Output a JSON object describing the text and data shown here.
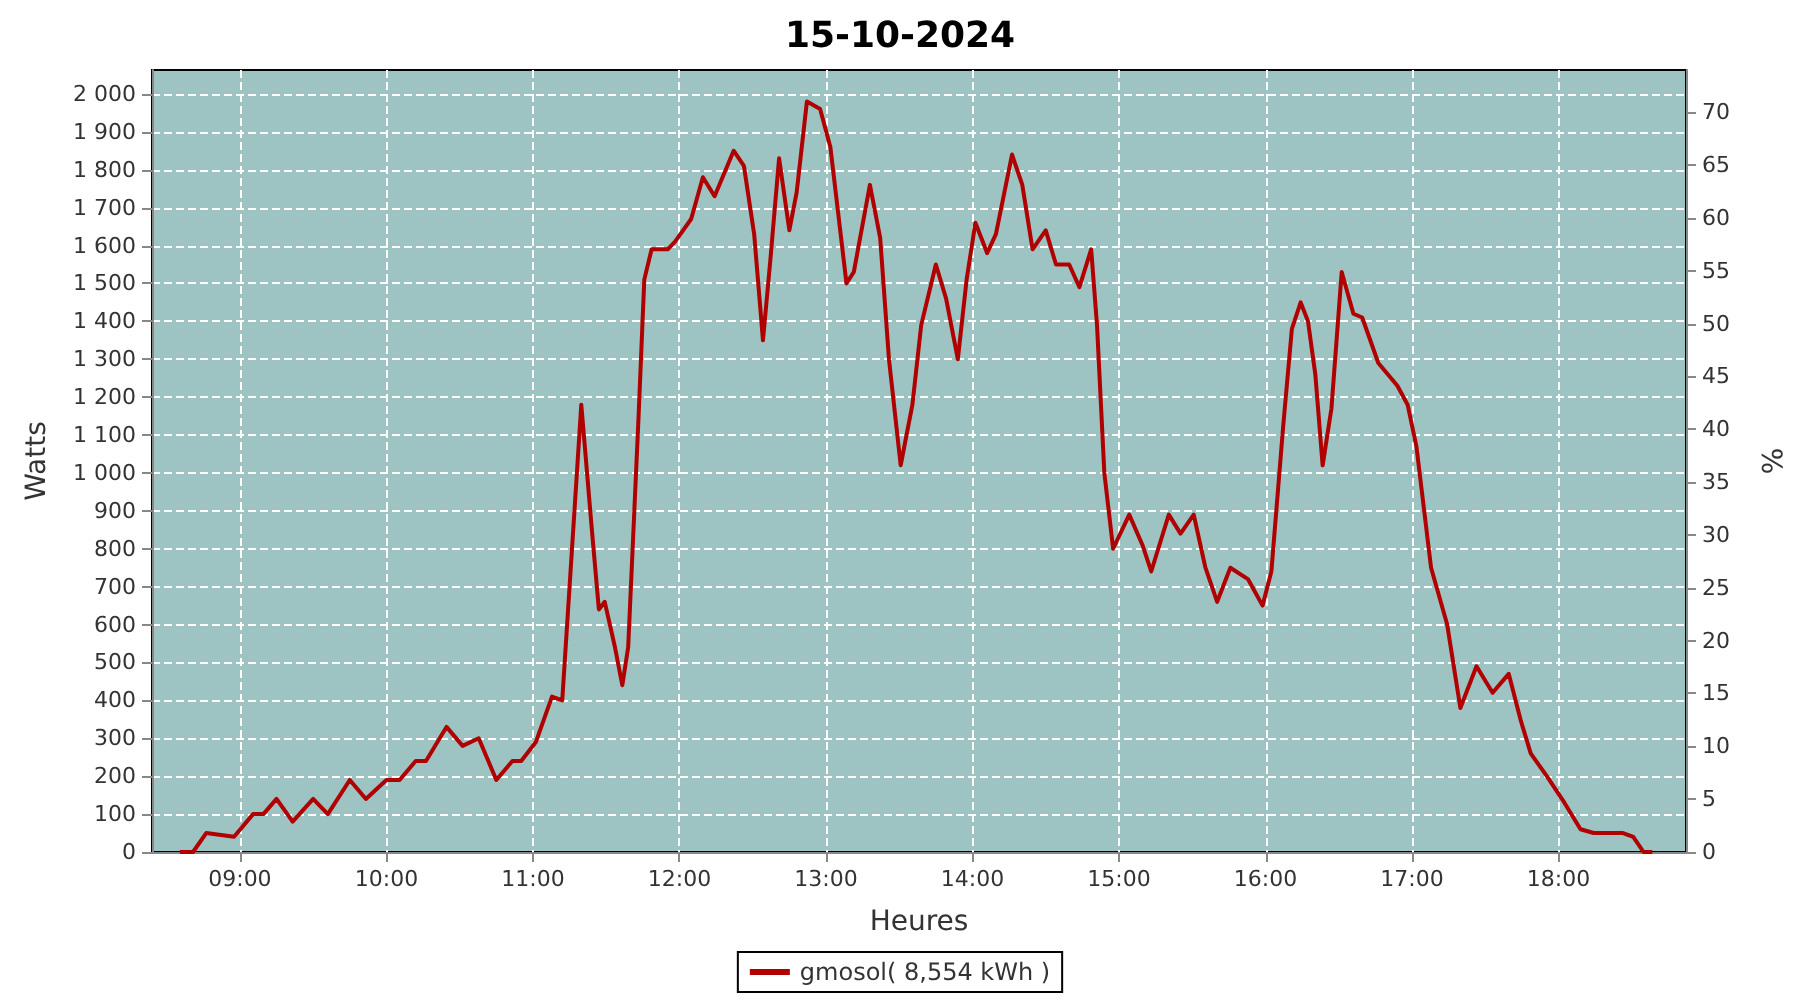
{
  "chart_data": {
    "type": "line",
    "title": "15-10-2024",
    "xlabel": "Heures",
    "ylabel": "Watts",
    "y2label": "%",
    "x": [
      8.59,
      8.68,
      8.77,
      8.96,
      9.09,
      9.16,
      9.25,
      9.36,
      9.5,
      9.6,
      9.75,
      9.86,
      10.0,
      10.09,
      10.2,
      10.27,
      10.41,
      10.52,
      10.63,
      10.75,
      10.86,
      10.92,
      11.02,
      11.13,
      11.2,
      11.33,
      11.4,
      11.45,
      11.49,
      11.56,
      11.61,
      11.65,
      11.72,
      11.76,
      11.81,
      11.92,
      11.97,
      12.08,
      12.16,
      12.24,
      12.37,
      12.44,
      12.51,
      12.57,
      12.62,
      12.68,
      12.75,
      12.8,
      12.87,
      12.96,
      13.03,
      13.14,
      13.19,
      13.3,
      13.37,
      13.43,
      13.51,
      13.59,
      13.65,
      13.75,
      13.82,
      13.9,
      13.96,
      14.02,
      14.1,
      14.16,
      14.27,
      14.34,
      14.41,
      14.5,
      14.57,
      14.66,
      14.73,
      14.81,
      14.85,
      14.9,
      14.96,
      15.07,
      15.16,
      15.22,
      15.34,
      15.42,
      15.51,
      15.59,
      15.67,
      15.76,
      15.88,
      15.98,
      16.04,
      16.12,
      16.18,
      16.24,
      16.29,
      16.34,
      16.39,
      16.45,
      16.52,
      16.6,
      16.66,
      16.77,
      16.9,
      16.97,
      17.03,
      17.13,
      17.24,
      17.33,
      17.44,
      17.55,
      17.66,
      17.74,
      17.81,
      17.92,
      18.04,
      18.15,
      18.24,
      18.44,
      18.51,
      18.58,
      18.64
    ],
    "series": [
      {
        "name": "gmosol( 8,554 kWh )",
        "color": "#b00000",
        "values": [
          0,
          0,
          50,
          40,
          100,
          100,
          140,
          80,
          140,
          100,
          190,
          140,
          190,
          190,
          240,
          240,
          330,
          280,
          300,
          190,
          240,
          240,
          290,
          410,
          400,
          1180,
          860,
          640,
          660,
          540,
          440,
          540,
          1140,
          1510,
          1590,
          1590,
          1610,
          1670,
          1780,
          1730,
          1850,
          1810,
          1630,
          1350,
          1560,
          1830,
          1640,
          1740,
          1980,
          1960,
          1860,
          1500,
          1530,
          1760,
          1620,
          1300,
          1020,
          1180,
          1390,
          1550,
          1460,
          1300,
          1510,
          1660,
          1580,
          1630,
          1840,
          1760,
          1590,
          1640,
          1550,
          1550,
          1490,
          1590,
          1390,
          1000,
          800,
          890,
          810,
          740,
          890,
          840,
          890,
          750,
          660,
          750,
          720,
          650,
          740,
          1120,
          1380,
          1450,
          1400,
          1260,
          1020,
          1170,
          1530,
          1420,
          1410,
          1290,
          1230,
          1180,
          1070,
          750,
          600,
          380,
          490,
          420,
          470,
          350,
          260,
          200,
          130,
          60,
          50,
          50,
          40,
          0,
          0
        ]
      }
    ],
    "xlim": [
      8.4,
      18.87
    ],
    "xticks": [
      {
        "value": 9,
        "label": "09:00"
      },
      {
        "value": 10,
        "label": "10:00"
      },
      {
        "value": 11,
        "label": "11:00"
      },
      {
        "value": 12,
        "label": "12:00"
      },
      {
        "value": 13,
        "label": "13:00"
      },
      {
        "value": 14,
        "label": "14:00"
      },
      {
        "value": 15,
        "label": "15:00"
      },
      {
        "value": 16,
        "label": "16:00"
      },
      {
        "value": 17,
        "label": "17:00"
      },
      {
        "value": 18,
        "label": "18:00"
      }
    ],
    "ylim": [
      0,
      2063
    ],
    "yticks": [
      0,
      100,
      200,
      300,
      400,
      500,
      600,
      700,
      800,
      900,
      {
        "value": 1000,
        "label": "1 000"
      },
      {
        "value": 1100,
        "label": "1 100"
      },
      {
        "value": 1200,
        "label": "1 200"
      },
      {
        "value": 1300,
        "label": "1 300"
      },
      {
        "value": 1400,
        "label": "1 400"
      },
      {
        "value": 1500,
        "label": "1 500"
      },
      {
        "value": 1600,
        "label": "1 600"
      },
      {
        "value": 1700,
        "label": "1 700"
      },
      {
        "value": 1800,
        "label": "1 800"
      },
      {
        "value": 1900,
        "label": "1 900"
      },
      {
        "value": 2000,
        "label": "2 000"
      }
    ],
    "y2lim": [
      0,
      74
    ],
    "y2ticks": [
      0,
      5,
      10,
      15,
      20,
      25,
      30,
      35,
      40,
      45,
      50,
      55,
      60,
      65,
      70
    ],
    "grid": true,
    "legend": "bottom",
    "marker": "none",
    "line_style": "solid"
  }
}
